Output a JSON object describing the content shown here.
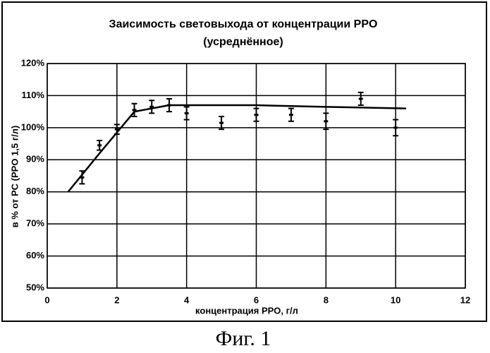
{
  "chart_data": {
    "type": "scatter",
    "title": "Заисимость световыхода от концентрации PPO",
    "subtitle": "(усреднённое)",
    "x_label": "концентрация PPO, г/л",
    "y_label": "в % от PC (PPO 1,5 г/л)",
    "caption": "Фиг. 1",
    "x": [
      1,
      1.5,
      2,
      2.5,
      3,
      3.5,
      4,
      5,
      6,
      7,
      8,
      9,
      10
    ],
    "values": [
      84.5,
      94.5,
      99.5,
      105.5,
      106.5,
      107,
      104.5,
      101.5,
      104,
      104,
      102,
      109,
      100
    ],
    "errors": [
      2,
      1.5,
      1.5,
      2,
      2,
      2,
      2,
      2,
      2,
      2,
      2.5,
      2,
      2.5
    ],
    "color": "#000000",
    "curve": {
      "x": [
        0.6,
        1.5,
        2.5,
        3.5,
        4,
        6,
        8,
        10.3
      ],
      "values": [
        80,
        92,
        105,
        107,
        107,
        107,
        106.5,
        106
      ]
    },
    "xlim": [
      0,
      12
    ],
    "xticks": [
      0,
      2,
      4,
      6,
      8,
      10,
      12
    ],
    "ylim": [
      50,
      120
    ],
    "yticks": [
      {
        "value": 50,
        "label": "50%"
      },
      {
        "value": 60,
        "label": "60%"
      },
      {
        "value": 70,
        "label": "70%"
      },
      {
        "value": 80,
        "label": "80%"
      },
      {
        "value": 90,
        "label": "90%"
      },
      {
        "value": 100,
        "label": "100%"
      },
      {
        "value": 110,
        "label": "110%"
      },
      {
        "value": 120,
        "label": "120%"
      }
    ],
    "grid": true
  }
}
